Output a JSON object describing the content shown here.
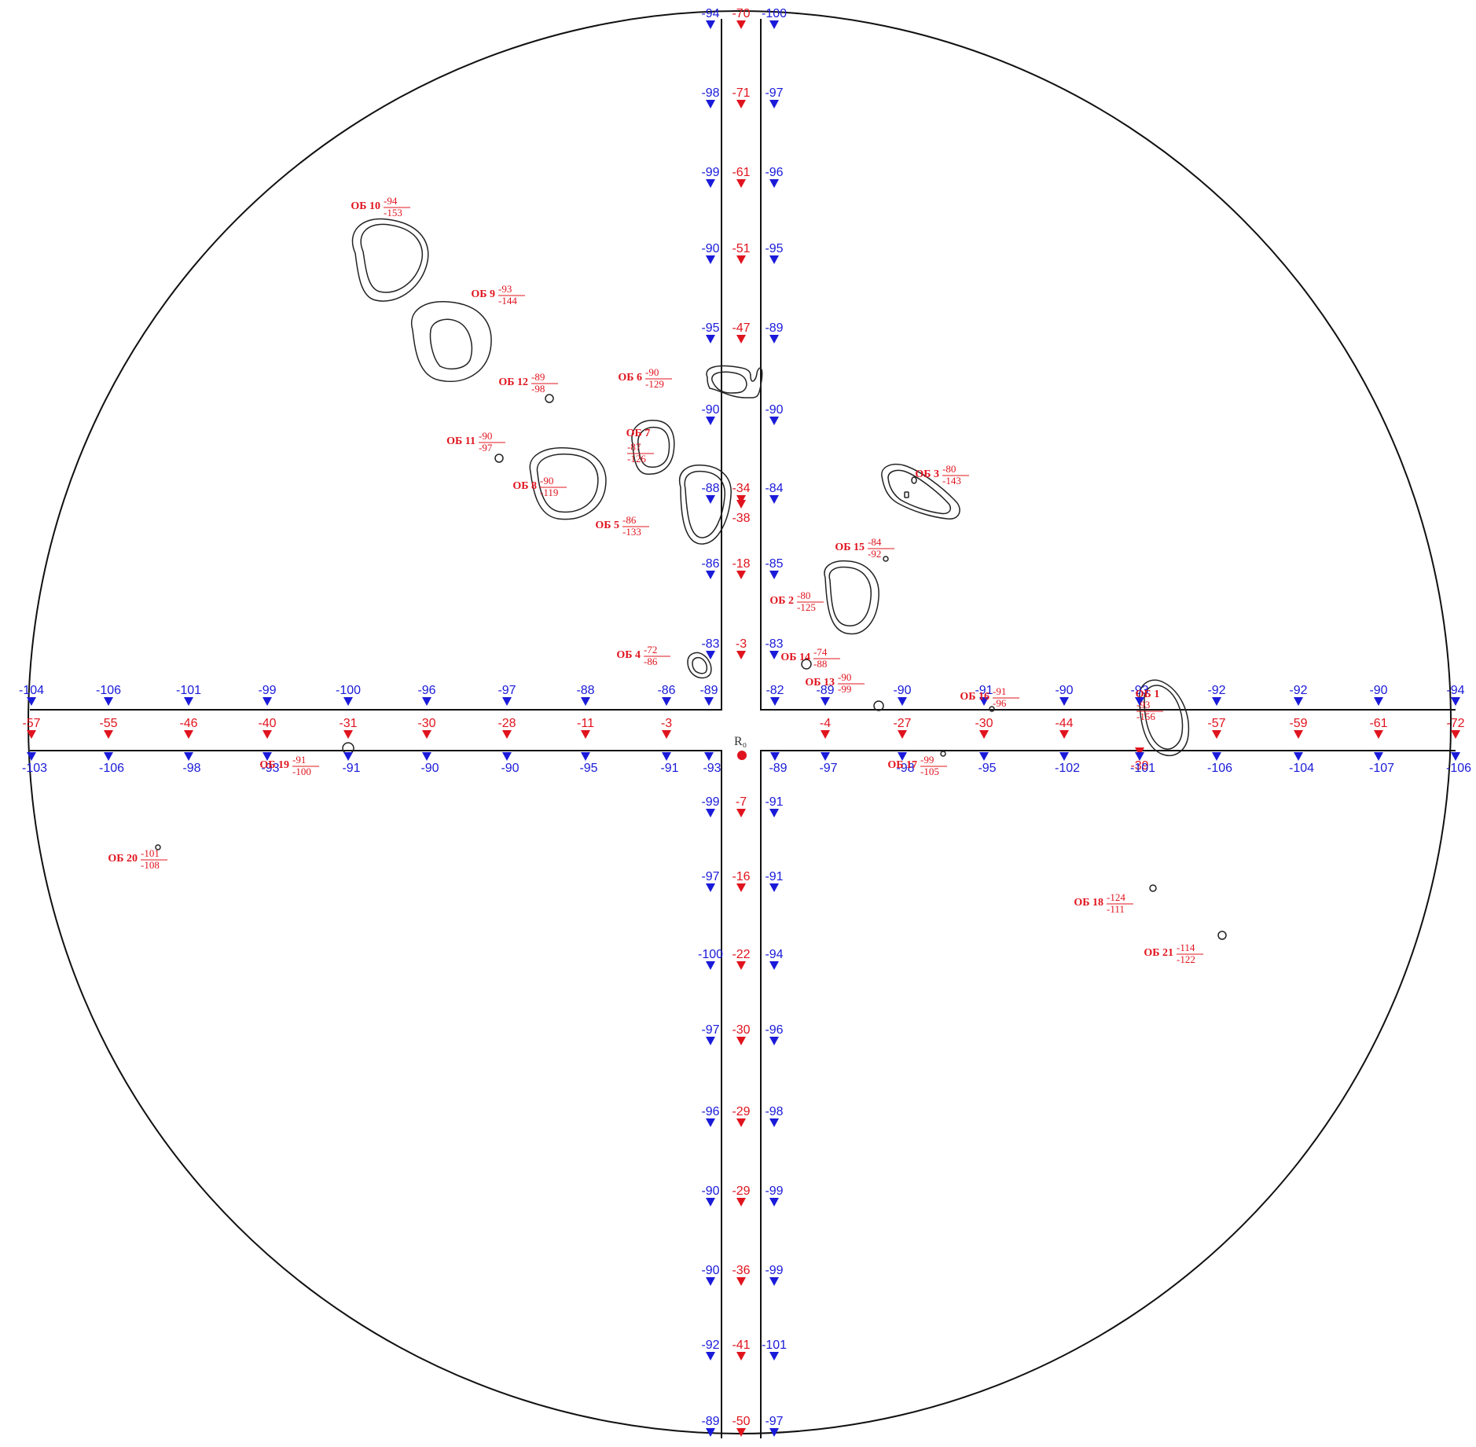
{
  "colors": {
    "blue": "#1a1ad9",
    "red": "#e0141e",
    "line": "#111111"
  },
  "center_label": "R₀",
  "vertical_axis": {
    "up": [
      {
        "left": "-94",
        "mid": "-70",
        "right": "-100"
      },
      {
        "left": "-98",
        "mid": "-71",
        "right": "-97"
      },
      {
        "left": "-99",
        "mid": "-61",
        "right": "-96"
      },
      {
        "left": "-90",
        "mid": "-51",
        "right": "-95"
      },
      {
        "left": "-95",
        "mid": "-47",
        "right": "-89"
      },
      {
        "left": "-90",
        "mid": "-38",
        "right": "-90"
      },
      {
        "left": "-88",
        "mid": "-34",
        "right": "-84"
      },
      {
        "left": "-86",
        "mid": "-18",
        "right": "-85"
      },
      {
        "left": "-83",
        "mid": "-3",
        "right": "-83"
      }
    ],
    "down": [
      {
        "left": "-99",
        "mid": "-7",
        "right": "-91"
      },
      {
        "left": "-97",
        "mid": "-16",
        "right": "-91"
      },
      {
        "left": "-100",
        "mid": "-22",
        "right": "-94"
      },
      {
        "left": "-97",
        "mid": "-30",
        "right": "-96"
      },
      {
        "left": "-96",
        "mid": "-29",
        "right": "-98"
      },
      {
        "left": "-90",
        "mid": "-29",
        "right": "-99"
      },
      {
        "left": "-90",
        "mid": "-36",
        "right": "-99"
      },
      {
        "left": "-92",
        "mid": "-41",
        "right": "-101"
      },
      {
        "left": "-89",
        "mid": "-50",
        "right": "-97"
      }
    ]
  },
  "horizontal_axis": {
    "left": [
      {
        "top": "-104",
        "mid": "-57",
        "bottom": "-103"
      },
      {
        "top": "-106",
        "mid": "-55",
        "bottom": "-106"
      },
      {
        "top": "-101",
        "mid": "-46",
        "bottom": "-98"
      },
      {
        "top": "-99",
        "mid": "-40",
        "bottom": "-93"
      },
      {
        "top": "-100",
        "mid": "-31",
        "bottom": "-91"
      },
      {
        "top": "-96",
        "mid": "-30",
        "bottom": "-90"
      },
      {
        "top": "-97",
        "mid": "-28",
        "bottom": "-90"
      },
      {
        "top": "-88",
        "mid": "-11",
        "bottom": "-95"
      },
      {
        "top": "-86",
        "mid": "-3",
        "bottom": "-91"
      },
      {
        "top": "-89",
        "mid": "",
        "bottom": "-93"
      }
    ],
    "right": [
      {
        "top": "-82",
        "mid": "",
        "bottom": "-89"
      },
      {
        "top": "-89",
        "mid": "-4",
        "bottom": "-97"
      },
      {
        "top": "-90",
        "mid": "-27",
        "bottom": "-98"
      },
      {
        "top": "-91",
        "mid": "-30",
        "bottom": "-95"
      },
      {
        "top": "-90",
        "mid": "-44",
        "bottom": "-102"
      },
      {
        "top": "-93",
        "mid": "-39",
        "bottom": "-101"
      },
      {
        "top": "-92",
        "mid": "-57",
        "bottom": "-106"
      },
      {
        "top": "-92",
        "mid": "-59",
        "bottom": "-104"
      },
      {
        "top": "-90",
        "mid": "-61",
        "bottom": "-107"
      },
      {
        "top": "-94",
        "mid": "-72",
        "bottom": "-106"
      }
    ]
  },
  "objects": [
    {
      "name": "ОБ 1",
      "num": "-93",
      "den": "-156"
    },
    {
      "name": "ОБ 2",
      "num": "-80",
      "den": "-125"
    },
    {
      "name": "ОБ 3",
      "num": "-80",
      "den": "-143"
    },
    {
      "name": "ОБ 4",
      "num": "-72",
      "den": "-86"
    },
    {
      "name": "ОБ 5",
      "num": "-86",
      "den": "-133"
    },
    {
      "name": "ОБ 6",
      "num": "-90",
      "den": "-129"
    },
    {
      "name": "ОБ 7",
      "num": "-87",
      "den": "-126"
    },
    {
      "name": "ОБ 8",
      "num": "-90",
      "den": "-119"
    },
    {
      "name": "ОБ 9",
      "num": "-93",
      "den": "-144"
    },
    {
      "name": "ОБ 10",
      "num": "-94",
      "den": "-153"
    },
    {
      "name": "ОБ 11",
      "num": "-90",
      "den": "-97"
    },
    {
      "name": "ОБ 12",
      "num": "-89",
      "den": "-98"
    },
    {
      "name": "ОБ 13",
      "num": "-90",
      "den": "-99"
    },
    {
      "name": "ОБ 14",
      "num": "-74",
      "den": "-88"
    },
    {
      "name": "ОБ 15",
      "num": "-84",
      "den": "-92"
    },
    {
      "name": "ОБ 16",
      "num": "-91",
      "den": "-96"
    },
    {
      "name": "ОБ 17",
      "num": "-99",
      "den": "-105"
    },
    {
      "name": "ОБ 18",
      "num": "-124",
      "den": "-111"
    },
    {
      "name": "ОБ 19",
      "num": "-91",
      "den": "-100"
    },
    {
      "name": "ОБ 20",
      "num": "-101",
      "den": "-108"
    },
    {
      "name": "ОБ 21",
      "num": "-114",
      "den": "-122"
    }
  ]
}
